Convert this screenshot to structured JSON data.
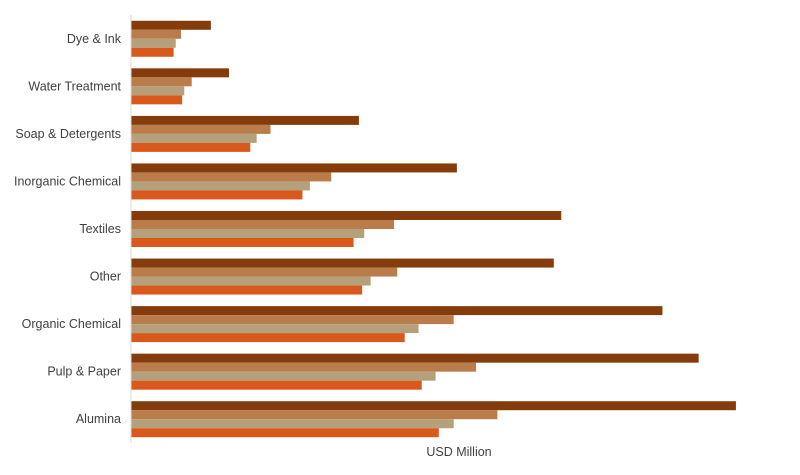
{
  "chart_data": {
    "type": "bar",
    "orientation": "horizontal",
    "xlabel": "USD Million",
    "categories": [
      "Dye & Ink",
      "Water Treatment",
      "Soap & Detergents",
      "Inorganic Chemical",
      "Textiles",
      "Other",
      "Organic Chemical",
      "Pulp & Paper",
      "Alumina"
    ],
    "series": [
      {
        "color": "#843C0C",
        "values": [
          75,
          92,
          214,
          306,
          404,
          397,
          499,
          533,
          568
        ]
      },
      {
        "color": "#B97C4A",
        "values": [
          47,
          57,
          131,
          188,
          247,
          250,
          303,
          324,
          344
        ]
      },
      {
        "color": "#B4A07A",
        "values": [
          42,
          50,
          118,
          168,
          219,
          225,
          270,
          286,
          303
        ]
      },
      {
        "color": "#D9581B",
        "values": [
          40,
          48,
          112,
          161,
          209,
          217,
          257,
          273,
          289
        ]
      }
    ],
    "xlim": [
      0,
      600
    ],
    "grid": false,
    "legend": "none"
  }
}
